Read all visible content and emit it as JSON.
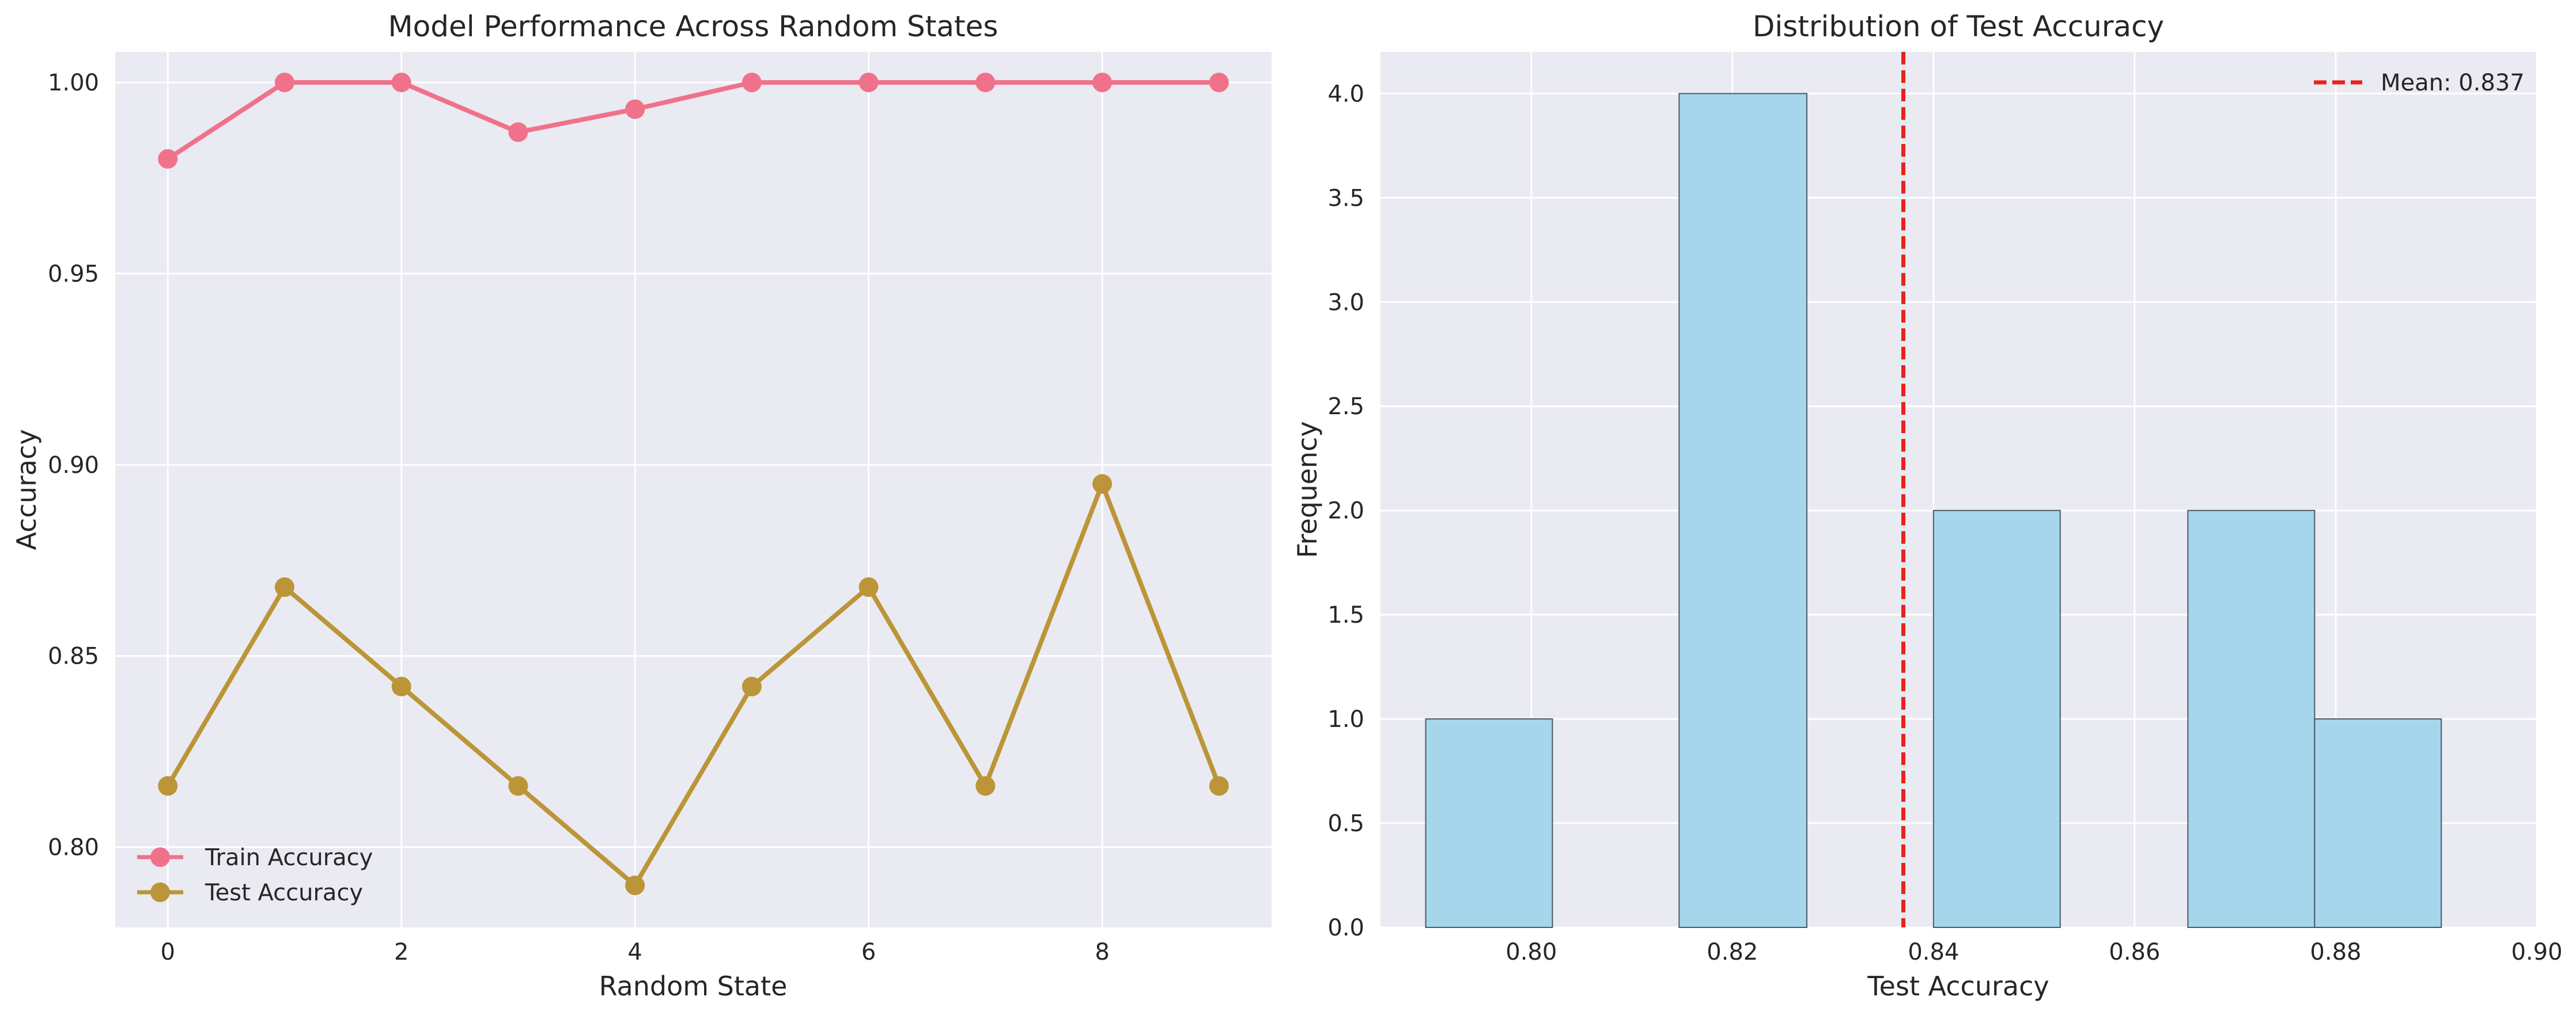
{
  "chart_data": [
    {
      "type": "line",
      "title": "Model Performance Across Random States",
      "xlabel": "Random State",
      "ylabel": "Accuracy",
      "x": [
        0,
        1,
        2,
        3,
        4,
        5,
        6,
        7,
        8,
        9
      ],
      "xlim": [
        -0.45,
        9.45
      ],
      "ylim": [
        0.779,
        1.008
      ],
      "xticks": [
        0,
        2,
        4,
        6,
        8
      ],
      "yticks": [
        0.8,
        0.85,
        0.9,
        0.95,
        1.0
      ],
      "ytick_labels": [
        "0.80",
        "0.85",
        "0.90",
        "0.95",
        "1.00"
      ],
      "grid": true,
      "legend_position": "lower-left",
      "series": [
        {
          "name": "Train Accuracy",
          "color": "#f0728a",
          "marker": "circle",
          "values": [
            0.98,
            1.0,
            1.0,
            0.987,
            0.993,
            1.0,
            1.0,
            1.0,
            1.0,
            1.0
          ]
        },
        {
          "name": "Test Accuracy",
          "color": "#bb9537",
          "marker": "circle",
          "values": [
            0.816,
            0.868,
            0.842,
            0.816,
            0.79,
            0.842,
            0.868,
            0.816,
            0.895,
            0.816
          ]
        }
      ]
    },
    {
      "type": "bar",
      "subtype": "histogram",
      "title": "Distribution of Test Accuracy",
      "xlabel": "Test Accuracy",
      "ylabel": "Frequency",
      "xlim": [
        0.785,
        0.9
      ],
      "ylim": [
        0,
        4.2
      ],
      "xticks": [
        0.8,
        0.82,
        0.84,
        0.86,
        0.88,
        0.9
      ],
      "xtick_labels": [
        "0.80",
        "0.82",
        "0.84",
        "0.86",
        "0.88",
        "0.90"
      ],
      "yticks": [
        0.0,
        0.5,
        1.0,
        1.5,
        2.0,
        2.5,
        3.0,
        3.5,
        4.0
      ],
      "ytick_labels": [
        "0.0",
        "0.5",
        "1.0",
        "1.5",
        "2.0",
        "2.5",
        "3.0",
        "3.5",
        "4.0"
      ],
      "grid": true,
      "legend_position": "top-right",
      "bar_color": "#a6d6ec",
      "bar_edge_color": "#4a5a66",
      "bins": [
        {
          "start": 0.7895,
          "end": 0.8021,
          "count": 1
        },
        {
          "start": 0.8021,
          "end": 0.8147,
          "count": 0
        },
        {
          "start": 0.8147,
          "end": 0.8274,
          "count": 4
        },
        {
          "start": 0.8274,
          "end": 0.84,
          "count": 0
        },
        {
          "start": 0.84,
          "end": 0.8526,
          "count": 2
        },
        {
          "start": 0.8526,
          "end": 0.8653,
          "count": 0
        },
        {
          "start": 0.8653,
          "end": 0.8779,
          "count": 2
        },
        {
          "start": 0.8779,
          "end": 0.8905,
          "count": 1
        }
      ],
      "mean_line": {
        "value": 0.837,
        "label": "Mean: 0.837",
        "color": "#e8231d",
        "style": "dashed"
      }
    }
  ]
}
